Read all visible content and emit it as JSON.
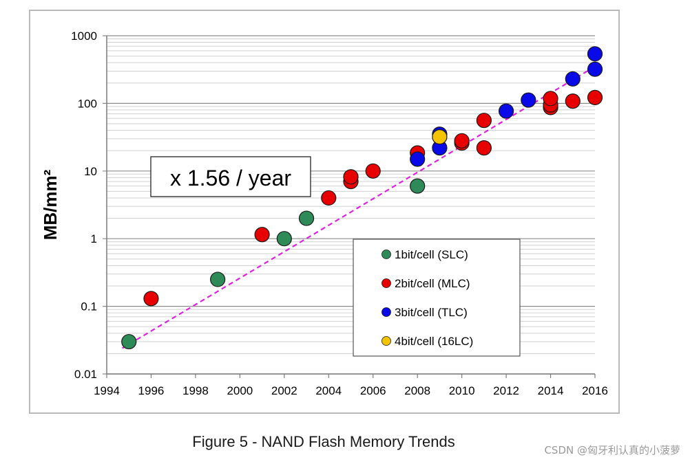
{
  "caption": "Figure 5 - NAND Flash Memory Trends",
  "watermark": "CSDN @匈牙利认真的小菠萝",
  "chart_data": {
    "type": "scatter",
    "title": "",
    "xlabel": "",
    "ylabel": "MB/mm²",
    "y_scale": "log",
    "xlim": [
      1994,
      2016
    ],
    "ylim": [
      0.01,
      1000
    ],
    "x_ticks": [
      "1994",
      "1996",
      "1998",
      "2000",
      "2002",
      "2004",
      "2006",
      "2008",
      "2010",
      "2012",
      "2014",
      "2016"
    ],
    "y_ticks": [
      "0.01",
      "0.1",
      "1",
      "10",
      "100",
      "1000"
    ],
    "grid": "horizontal minor gridlines",
    "legend_position": "bottom-right",
    "annotation": "x 1.56 / year",
    "trendline": {
      "style": "dashed",
      "color": "#e020e0",
      "points": [
        [
          1994.7,
          0.024
        ],
        [
          2016,
          350
        ]
      ]
    },
    "series": [
      {
        "name": "1bit/cell (SLC)",
        "color": "#2e8b57",
        "points": [
          [
            1995,
            0.03
          ],
          [
            1999,
            0.25
          ],
          [
            2002,
            1.0
          ],
          [
            2003,
            2.0
          ],
          [
            2008,
            6.0
          ]
        ]
      },
      {
        "name": "2bit/cell (MLC)",
        "color": "#e80000",
        "points": [
          [
            1996,
            0.13
          ],
          [
            2001,
            1.15
          ],
          [
            2004,
            4.0
          ],
          [
            2005,
            7.0
          ],
          [
            2005,
            8.2
          ],
          [
            2006,
            10.0
          ],
          [
            2008,
            18.5
          ],
          [
            2010,
            26.0
          ],
          [
            2010,
            28.0
          ],
          [
            2011,
            22.0
          ],
          [
            2011,
            56.0
          ],
          [
            2014,
            87.0
          ],
          [
            2014,
            95.0
          ],
          [
            2014,
            118.0
          ],
          [
            2015,
            108.0
          ],
          [
            2016,
            122.0
          ]
        ]
      },
      {
        "name": "3bit/cell (TLC)",
        "color": "#0a0ae8",
        "points": [
          [
            2008,
            15.0
          ],
          [
            2009,
            22.0
          ],
          [
            2009,
            35.0
          ],
          [
            2012,
            77.0
          ],
          [
            2013,
            112.0
          ],
          [
            2015,
            230.0
          ],
          [
            2016,
            320.0
          ],
          [
            2016,
            540.0
          ]
        ]
      },
      {
        "name": "4bit/cell (16LC)",
        "color": "#f5c400",
        "points": [
          [
            2009,
            32.0
          ]
        ]
      }
    ]
  }
}
